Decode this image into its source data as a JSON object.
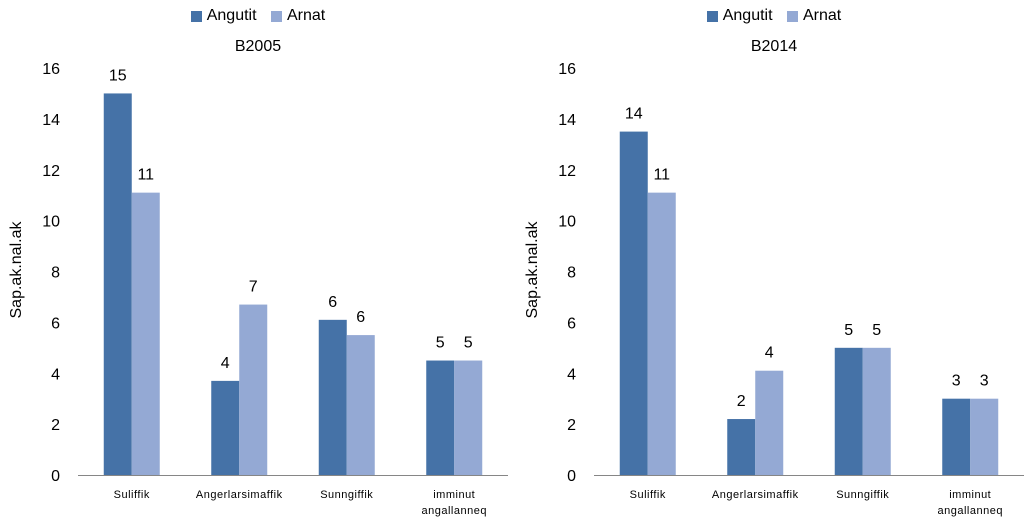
{
  "colors": {
    "angutit": "#4572a7",
    "arnat": "#94a9d4"
  },
  "chart_data": [
    {
      "type": "bar",
      "title": "B2005",
      "ylabel": "Sap.ak.nal.ak",
      "xlabel": "",
      "ylim": [
        0,
        16
      ],
      "yticks": [
        0,
        2,
        4,
        6,
        8,
        10,
        12,
        14,
        16
      ],
      "categories": [
        "Suliffik",
        "Angerlarsimaffik",
        "Sunngiffik",
        "imminut angallanneq"
      ],
      "series": [
        {
          "name": "Angutit",
          "values": [
            15,
            3.7,
            6.1,
            4.5
          ],
          "labels": [
            "15",
            "4",
            "6",
            "5"
          ]
        },
        {
          "name": "Arnat",
          "values": [
            11.1,
            6.7,
            5.5,
            4.5
          ],
          "labels": [
            "11",
            "7",
            "6",
            "5"
          ]
        }
      ],
      "legend": "top"
    },
    {
      "type": "bar",
      "title": "B2014",
      "ylabel": "Sap.ak.nal.ak",
      "xlabel": "",
      "ylim": [
        0,
        16
      ],
      "yticks": [
        0,
        2,
        4,
        6,
        8,
        10,
        12,
        14,
        16
      ],
      "categories": [
        "Suliffik",
        "Angerlarsimaffik",
        "Sunngiffik",
        "imminut angallanneq"
      ],
      "series": [
        {
          "name": "Angutit",
          "values": [
            13.5,
            2.2,
            5,
            3
          ],
          "labels": [
            "14",
            "2",
            "5",
            "3"
          ]
        },
        {
          "name": "Arnat",
          "values": [
            11.1,
            4.1,
            5,
            3
          ],
          "labels": [
            "11",
            "4",
            "5",
            "3"
          ]
        }
      ],
      "legend": "top"
    }
  ]
}
